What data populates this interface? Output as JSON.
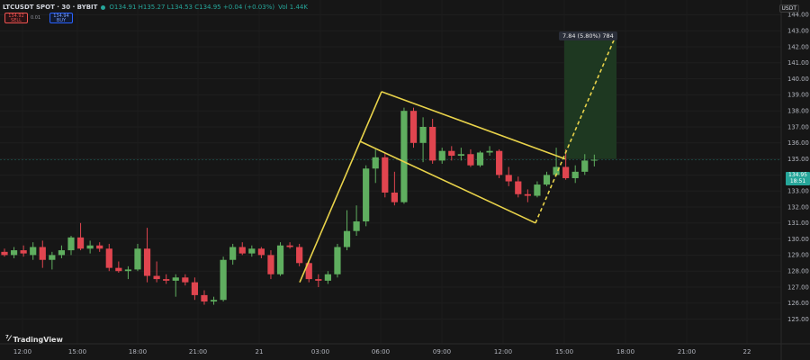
{
  "header": {
    "symbol": "LTCUSDT SPOT · 30 · BYBIT",
    "ohlc": "O134.91 H135.27 L134.53 C134.95 +0.04 (+0.03%)",
    "volume": "Vol 1.44K",
    "sell_price": "134.92",
    "sell_label": "SELL",
    "spread": "0.01",
    "buy_price": "134.94",
    "buy_label": "BUY"
  },
  "axis": {
    "currency": "USDT",
    "price_labels": [
      "144.00",
      "143.00",
      "142.00",
      "141.00",
      "140.00",
      "139.00",
      "138.00",
      "137.00",
      "136.00",
      "135.00",
      "134.00",
      "133.00",
      "132.00",
      "131.00",
      "130.00",
      "129.00",
      "128.00",
      "127.00",
      "126.00",
      "125.00"
    ],
    "time_labels": [
      "12:00",
      "15:00",
      "18:00",
      "21:00",
      "21",
      "03:00",
      "06:00",
      "09:00",
      "12:00",
      "15:00",
      "18:00",
      "21:00",
      "22"
    ]
  },
  "last_price": {
    "price": "134.95",
    "countdown": "18:51"
  },
  "measure": {
    "text": "7.84 (5.80%) 784"
  },
  "branding": {
    "name": "TradingView"
  },
  "colors": {
    "up": "#5fae5f",
    "down": "#e0454f",
    "pattern": "#e8d24a",
    "target": "#1f3a22",
    "bg": "#161616"
  },
  "chart_data": {
    "type": "candlestick",
    "interval": "30",
    "ylim": [
      125,
      144
    ],
    "candles": [
      [
        129.2,
        129.4,
        128.9,
        129.0
      ],
      [
        129.0,
        129.5,
        128.8,
        129.3
      ],
      [
        129.3,
        129.6,
        128.9,
        129.1
      ],
      [
        129.0,
        129.8,
        128.7,
        129.5
      ],
      [
        129.5,
        129.9,
        128.2,
        128.7
      ],
      [
        128.7,
        129.2,
        128.1,
        129.0
      ],
      [
        129.0,
        129.6,
        128.8,
        129.3
      ],
      [
        129.3,
        130.2,
        129.0,
        130.1
      ],
      [
        130.1,
        131.0,
        129.3,
        129.4
      ],
      [
        129.4,
        129.9,
        129.1,
        129.6
      ],
      [
        129.6,
        129.8,
        129.2,
        129.4
      ],
      [
        129.4,
        129.7,
        128.0,
        128.2
      ],
      [
        128.2,
        128.6,
        127.9,
        128.0
      ],
      [
        128.0,
        128.3,
        127.5,
        128.1
      ],
      [
        128.1,
        129.7,
        128.0,
        129.4
      ],
      [
        129.4,
        130.7,
        127.3,
        127.7
      ],
      [
        127.7,
        128.6,
        127.3,
        127.5
      ],
      [
        127.5,
        127.8,
        127.2,
        127.4
      ],
      [
        127.4,
        127.8,
        126.4,
        127.6
      ],
      [
        127.6,
        127.8,
        127.1,
        127.3
      ],
      [
        127.3,
        127.6,
        126.2,
        126.5
      ],
      [
        126.5,
        126.8,
        125.9,
        126.1
      ],
      [
        126.1,
        126.4,
        125.9,
        126.2
      ],
      [
        126.2,
        128.9,
        126.1,
        128.7
      ],
      [
        128.7,
        129.7,
        128.4,
        129.5
      ],
      [
        129.5,
        129.8,
        129.0,
        129.1
      ],
      [
        129.1,
        129.6,
        128.9,
        129.4
      ],
      [
        129.4,
        129.5,
        128.8,
        129.0
      ],
      [
        129.0,
        129.3,
        127.5,
        127.8
      ],
      [
        127.8,
        129.8,
        127.7,
        129.6
      ],
      [
        129.6,
        129.8,
        129.4,
        129.5
      ],
      [
        129.5,
        129.7,
        128.3,
        128.5
      ],
      [
        128.5,
        128.7,
        127.3,
        127.5
      ],
      [
        127.5,
        127.8,
        127.0,
        127.4
      ],
      [
        127.4,
        128.0,
        127.2,
        127.8
      ],
      [
        127.8,
        129.7,
        127.6,
        129.5
      ],
      [
        129.5,
        131.8,
        129.3,
        130.5
      ],
      [
        130.5,
        132.1,
        130.2,
        131.1
      ],
      [
        131.1,
        134.6,
        130.8,
        134.4
      ],
      [
        134.4,
        135.6,
        133.5,
        135.1
      ],
      [
        135.1,
        135.4,
        132.6,
        132.9
      ],
      [
        132.9,
        134.2,
        132.1,
        132.3
      ],
      [
        132.3,
        138.2,
        132.2,
        138.0
      ],
      [
        138.0,
        138.2,
        135.7,
        136.0
      ],
      [
        136.0,
        137.6,
        134.8,
        137.0
      ],
      [
        137.0,
        137.5,
        134.7,
        134.9
      ],
      [
        134.9,
        135.7,
        134.7,
        135.5
      ],
      [
        135.5,
        135.8,
        134.9,
        135.2
      ],
      [
        135.2,
        135.7,
        134.9,
        135.3
      ],
      [
        135.3,
        135.6,
        134.5,
        134.6
      ],
      [
        134.6,
        135.5,
        134.5,
        135.4
      ],
      [
        135.4,
        135.8,
        135.2,
        135.5
      ],
      [
        135.5,
        135.6,
        133.8,
        134.0
      ],
      [
        134.0,
        134.5,
        133.3,
        133.6
      ],
      [
        133.6,
        133.9,
        132.6,
        132.8
      ],
      [
        132.8,
        133.1,
        132.3,
        132.7
      ],
      [
        132.7,
        133.6,
        132.6,
        133.4
      ],
      [
        133.4,
        134.2,
        133.3,
        134.0
      ],
      [
        134.0,
        135.7,
        133.9,
        134.5
      ],
      [
        134.5,
        135.6,
        133.7,
        133.8
      ],
      [
        133.8,
        134.6,
        133.5,
        134.2
      ],
      [
        134.2,
        135.3,
        134.0,
        134.9
      ],
      [
        134.91,
        135.27,
        134.53,
        134.95
      ]
    ],
    "annotations": [
      {
        "type": "flagpole",
        "from": {
          "time": "02:30",
          "price": 127.3
        },
        "to": {
          "time": "06:00",
          "price": 139.2
        }
      },
      {
        "type": "channel-upper",
        "from": {
          "time": "06:00",
          "price": 139.2
        },
        "to": {
          "time": "15:00",
          "price": 135.0
        }
      },
      {
        "type": "channel-lower",
        "from": {
          "time": "04:30",
          "price": 136.1
        },
        "to": {
          "time": "13:30",
          "price": 131.0
        }
      },
      {
        "type": "projection",
        "from": {
          "time": "13:30",
          "price": 131.0
        },
        "to": {
          "time": "18:00",
          "price": 142.8
        }
      },
      {
        "type": "target-zone",
        "price_from": 135.0,
        "price_to": 142.84,
        "change": 7.84,
        "percent": 5.8,
        "ticks": 784
      }
    ]
  }
}
